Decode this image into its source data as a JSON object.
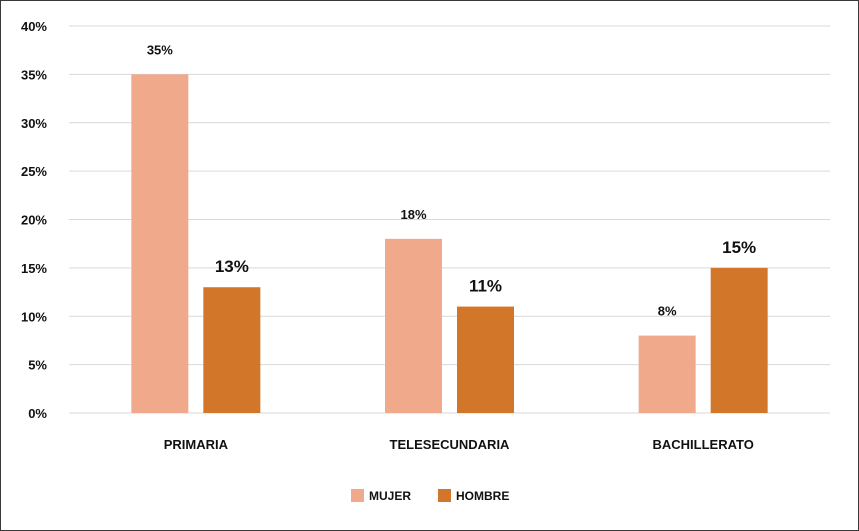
{
  "chart_data": {
    "type": "bar",
    "categories": [
      "PRIMARIA",
      "TELESECUNDARIA",
      "BACHILLERATO"
    ],
    "series": [
      {
        "name": "MUJER",
        "values": [
          35,
          18,
          8
        ],
        "labels": [
          "35%",
          "18%",
          "8%"
        ],
        "color": "#f0a98a"
      },
      {
        "name": "HOMBRE",
        "values": [
          13,
          11,
          15
        ],
        "labels": [
          "13%",
          "11%",
          "15%"
        ],
        "color": "#d2772a"
      }
    ],
    "ylim": [
      0,
      40
    ],
    "yticks": [
      0,
      5,
      10,
      15,
      20,
      25,
      30,
      35,
      40
    ],
    "ytick_labels": [
      "0%",
      "5%",
      "10%",
      "15%",
      "20%",
      "25%",
      "30%",
      "35%",
      "40%"
    ],
    "grid": true,
    "legend": "bottom-center",
    "gridline_color": "#d9d9d9"
  }
}
